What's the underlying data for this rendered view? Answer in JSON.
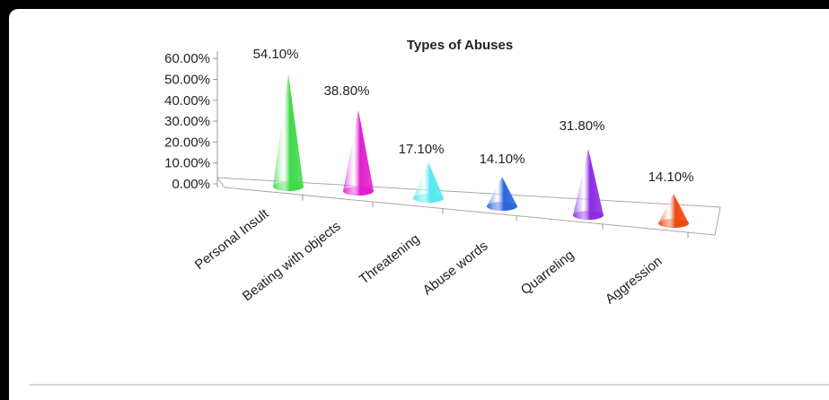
{
  "chart_data": {
    "type": "bar",
    "bar_shape": "cone-3d",
    "title": "Types of Abuses",
    "categories": [
      "Personal Insult",
      "Beating with objects",
      "Threatening",
      "Abuse words",
      "Quarreling",
      "Aggression"
    ],
    "values": [
      54.1,
      38.8,
      17.1,
      14.1,
      31.8,
      14.1
    ],
    "data_labels": [
      "54.10%",
      "38.80%",
      "17.10%",
      "14.10%",
      "31.80%",
      "14.10%"
    ],
    "colors": [
      "#3fd94a",
      "#e01fd0",
      "#55e8ee",
      "#2b66e0",
      "#8c2ce3",
      "#ee4a10"
    ],
    "y_ticks": [
      "0.00%",
      "10.00%",
      "20.00%",
      "30.00%",
      "40.00%",
      "50.00%",
      "60.00%"
    ],
    "ylim": [
      0,
      60
    ],
    "grid": false,
    "legend": "none"
  }
}
